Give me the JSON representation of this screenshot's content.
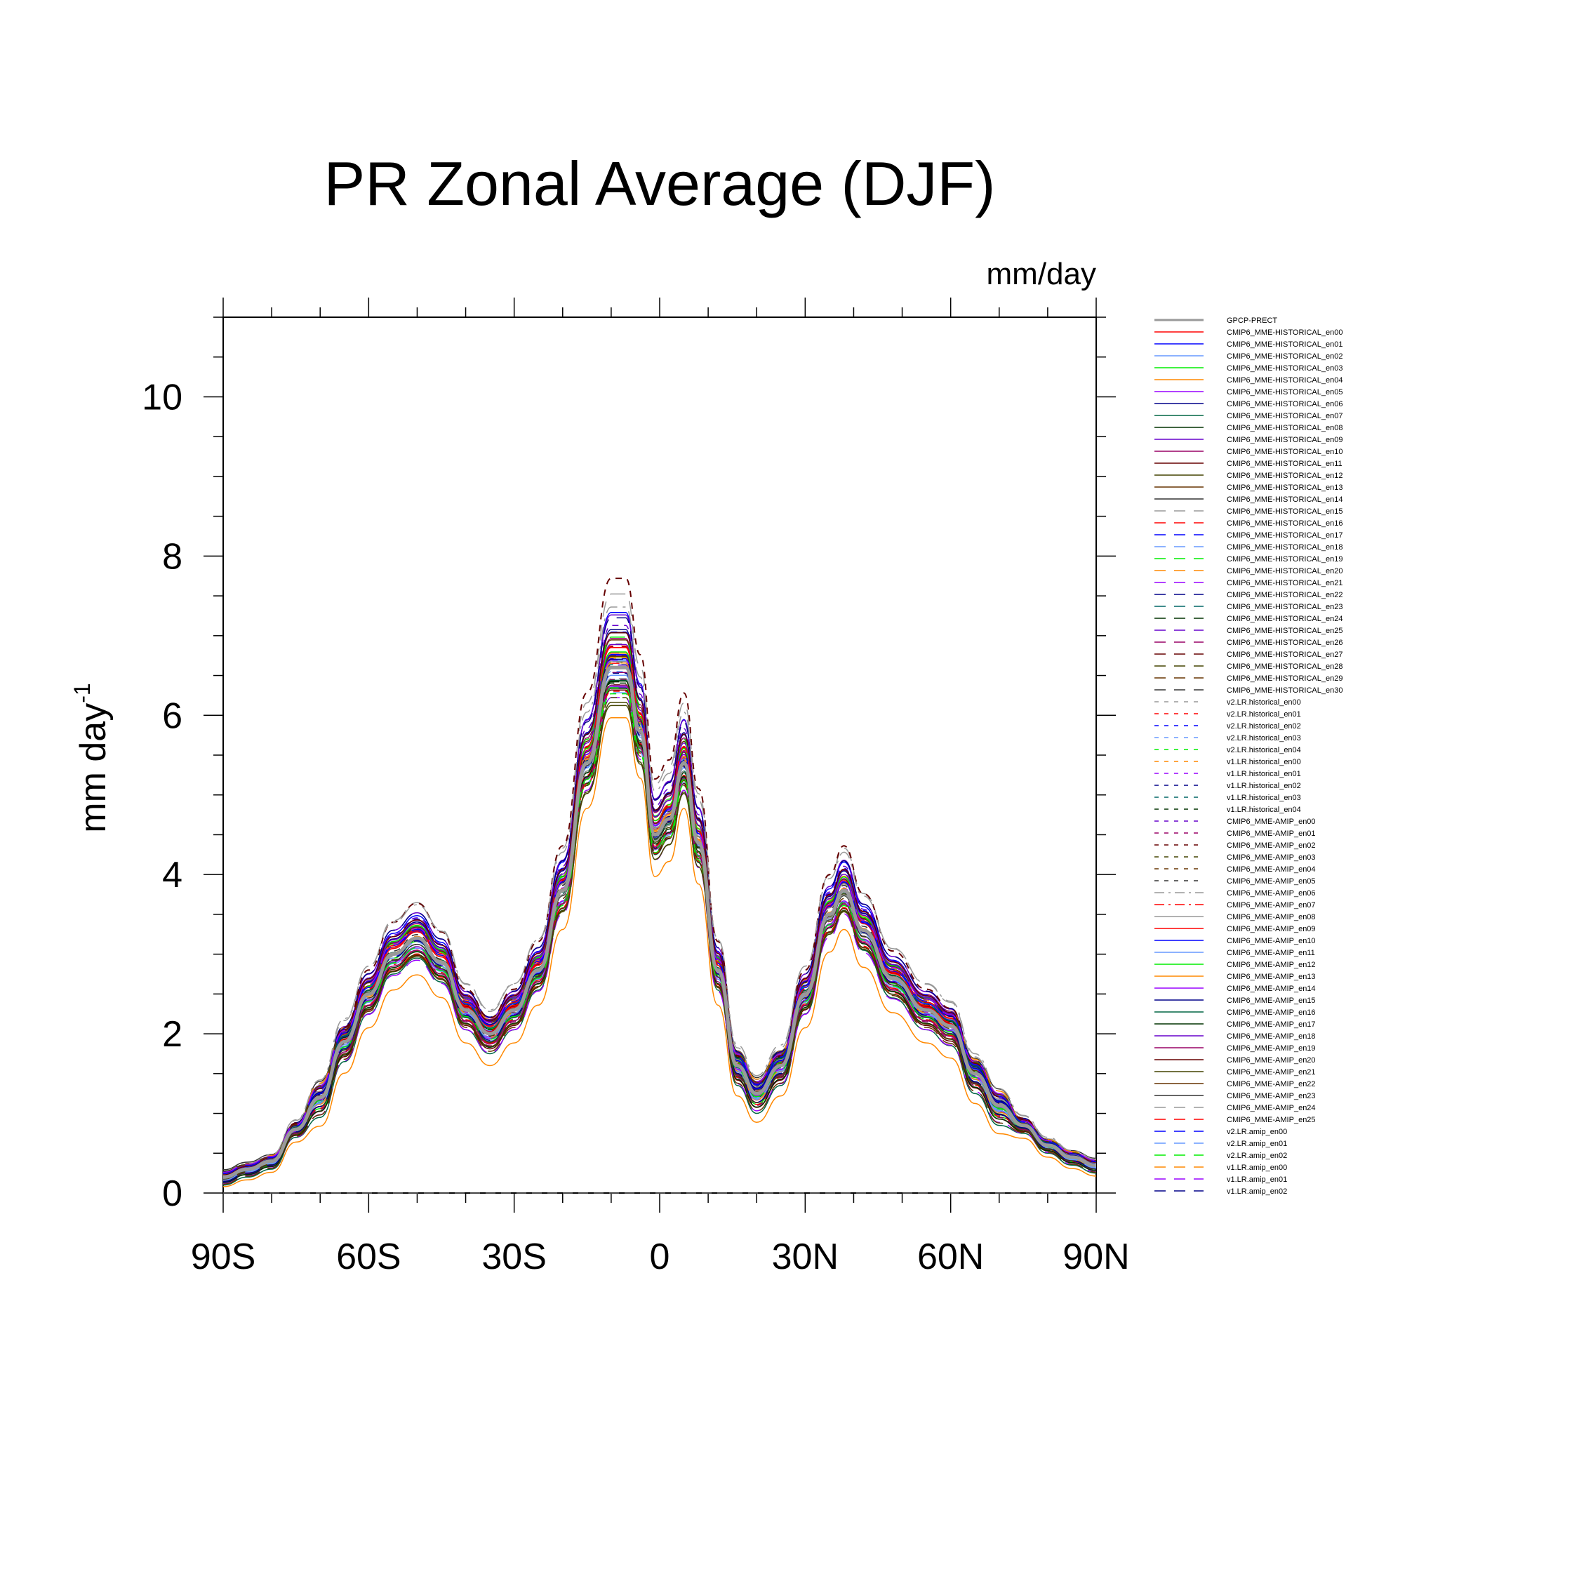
{
  "chart_data": {
    "type": "line",
    "title": "PR Zonal Average (DJF)",
    "units_label": "mm/day",
    "ylabel": "mm day",
    "ylabel_superscript": "-1",
    "xlabel": "",
    "xlim": [
      -90,
      90
    ],
    "ylim": [
      0,
      11
    ],
    "x_ticks": [
      {
        "value": -90,
        "label": "90S"
      },
      {
        "value": -60,
        "label": "60S"
      },
      {
        "value": -30,
        "label": "30S"
      },
      {
        "value": 0,
        "label": "0"
      },
      {
        "value": 30,
        "label": "30N"
      },
      {
        "value": 60,
        "label": "60N"
      },
      {
        "value": 90,
        "label": "90N"
      }
    ],
    "y_ticks": [
      {
        "value": 0,
        "label": "0"
      },
      {
        "value": 2,
        "label": "2"
      },
      {
        "value": 4,
        "label": "4"
      },
      {
        "value": 6,
        "label": "6"
      },
      {
        "value": 8,
        "label": "8"
      },
      {
        "value": 10,
        "label": "10"
      }
    ],
    "grid": false,
    "legend_position": "right",
    "base_profile": {
      "x": [
        -90,
        -85,
        -80,
        -75,
        -70,
        -65,
        -60,
        -55,
        -50,
        -45,
        -40,
        -35,
        -30,
        -25,
        -20,
        -15,
        -10,
        -7,
        -4,
        -1,
        2,
        5,
        8,
        12,
        16,
        20,
        25,
        30,
        35,
        38,
        42,
        48,
        55,
        60,
        65,
        70,
        75,
        80,
        85,
        90
      ],
      "values": [
        0.2,
        0.3,
        0.4,
        0.8,
        1.2,
        1.9,
        2.5,
        3.0,
        3.2,
        2.9,
        2.3,
        2.0,
        2.3,
        2.8,
        3.8,
        5.4,
        6.6,
        6.6,
        5.8,
        4.5,
        4.7,
        5.4,
        4.4,
        2.8,
        1.6,
        1.25,
        1.6,
        2.5,
        3.5,
        3.8,
        3.3,
        2.7,
        2.3,
        2.1,
        1.5,
        1.1,
        0.85,
        0.6,
        0.45,
        0.35
      ]
    },
    "series": [
      {
        "name": "GPCP-PRECT",
        "color": "#999999",
        "dash": "solid",
        "width": 5,
        "offset": 0.0,
        "scale": 1.0
      },
      {
        "name": "CMIP6_MME-HISTORICAL_en00",
        "color": "#ff0000",
        "dash": "solid",
        "width": 1.5,
        "offset": 0.05,
        "scale": 1.02
      },
      {
        "name": "CMIP6_MME-HISTORICAL_en01",
        "color": "#0000ff",
        "dash": "solid",
        "width": 1.5,
        "offset": -0.1,
        "scale": 1.12
      },
      {
        "name": "CMIP6_MME-HISTORICAL_en02",
        "color": "#6699ff",
        "dash": "solid",
        "width": 1.5,
        "offset": 0.1,
        "scale": 0.97
      },
      {
        "name": "CMIP6_MME-HISTORICAL_en03",
        "color": "#00ee00",
        "dash": "solid",
        "width": 1.5,
        "offset": -0.2,
        "scale": 1.05
      },
      {
        "name": "CMIP6_MME-HISTORICAL_en04",
        "color": "#ff8800",
        "dash": "solid",
        "width": 1.5,
        "offset": -0.3,
        "scale": 0.95
      },
      {
        "name": "CMIP6_MME-HISTORICAL_en05",
        "color": "#9900ff",
        "dash": "solid",
        "width": 1.5,
        "offset": 0.15,
        "scale": 1.0
      },
      {
        "name": "CMIP6_MME-HISTORICAL_en06",
        "color": "#000088",
        "dash": "solid",
        "width": 1.5,
        "offset": -0.05,
        "scale": 1.08
      },
      {
        "name": "CMIP6_MME-HISTORICAL_en07",
        "color": "#006644",
        "dash": "solid",
        "width": 1.5,
        "offset": -0.25,
        "scale": 1.0
      },
      {
        "name": "CMIP6_MME-HISTORICAL_en08",
        "color": "#003300",
        "dash": "solid",
        "width": 1.5,
        "offset": 0.2,
        "scale": 0.93
      },
      {
        "name": "CMIP6_MME-HISTORICAL_en09",
        "color": "#6600cc",
        "dash": "solid",
        "width": 1.5,
        "offset": 0.0,
        "scale": 1.1
      },
      {
        "name": "CMIP6_MME-HISTORICAL_en10",
        "color": "#990066",
        "dash": "solid",
        "width": 1.5,
        "offset": 0.1,
        "scale": 1.04
      },
      {
        "name": "CMIP6_MME-HISTORICAL_en11",
        "color": "#660000",
        "dash": "solid",
        "width": 1.5,
        "offset": -0.15,
        "scale": 0.98
      },
      {
        "name": "CMIP6_MME-HISTORICAL_en12",
        "color": "#444400",
        "dash": "solid",
        "width": 1.5,
        "offset": 0.05,
        "scale": 0.92
      },
      {
        "name": "CMIP6_MME-HISTORICAL_en13",
        "color": "#663300",
        "dash": "solid",
        "width": 1.5,
        "offset": -0.05,
        "scale": 1.06
      },
      {
        "name": "CMIP6_MME-HISTORICAL_en14",
        "color": "#333333",
        "dash": "solid",
        "width": 1.5,
        "offset": 0.25,
        "scale": 0.96
      },
      {
        "name": "CMIP6_MME-HISTORICAL_en15",
        "color": "#999999",
        "dash": "longdash",
        "width": 1.5,
        "offset": 0.0,
        "scale": 1.14
      },
      {
        "name": "CMIP6_MME-HISTORICAL_en16",
        "color": "#ff0000",
        "dash": "longdash",
        "width": 1.5,
        "offset": 0.12,
        "scale": 0.99
      },
      {
        "name": "CMIP6_MME-HISTORICAL_en17",
        "color": "#0000ff",
        "dash": "longdash",
        "width": 1.5,
        "offset": -0.12,
        "scale": 1.03
      },
      {
        "name": "CMIP6_MME-HISTORICAL_en18",
        "color": "#6699ff",
        "dash": "longdash",
        "width": 1.5,
        "offset": 0.08,
        "scale": 0.94
      },
      {
        "name": "CMIP6_MME-HISTORICAL_en19",
        "color": "#00ee00",
        "dash": "longdash",
        "width": 1.5,
        "offset": -0.08,
        "scale": 1.07
      },
      {
        "name": "CMIP6_MME-HISTORICAL_en20",
        "color": "#ff8800",
        "dash": "longdash",
        "width": 1.5,
        "offset": 0.18,
        "scale": 1.0
      },
      {
        "name": "CMIP6_MME-HISTORICAL_en21",
        "color": "#9900ff",
        "dash": "longdash",
        "width": 1.5,
        "offset": -0.18,
        "scale": 0.97
      },
      {
        "name": "CMIP6_MME-HISTORICAL_en22",
        "color": "#000088",
        "dash": "longdash",
        "width": 1.5,
        "offset": 0.03,
        "scale": 1.09
      },
      {
        "name": "CMIP6_MME-HISTORICAL_en23",
        "color": "#006666",
        "dash": "longdash",
        "width": 1.5,
        "offset": -0.03,
        "scale": 1.01
      },
      {
        "name": "CMIP6_MME-HISTORICAL_en24",
        "color": "#003300",
        "dash": "longdash",
        "width": 1.5,
        "offset": 0.15,
        "scale": 0.95
      },
      {
        "name": "CMIP6_MME-HISTORICAL_en25",
        "color": "#6600cc",
        "dash": "longdash",
        "width": 1.5,
        "offset": -0.1,
        "scale": 1.02
      },
      {
        "name": "CMIP6_MME-HISTORICAL_en26",
        "color": "#990066",
        "dash": "longdash",
        "width": 1.5,
        "offset": 0.07,
        "scale": 0.98
      },
      {
        "name": "CMIP6_MME-HISTORICAL_en27",
        "color": "#660000",
        "dash": "longdash",
        "width": 1.5,
        "offset": -0.07,
        "scale": 1.05
      },
      {
        "name": "CMIP6_MME-HISTORICAL_en28",
        "color": "#444400",
        "dash": "longdash",
        "width": 1.5,
        "offset": 0.22,
        "scale": 0.93
      },
      {
        "name": "CMIP6_MME-HISTORICAL_en29",
        "color": "#663300",
        "dash": "longdash",
        "width": 1.5,
        "offset": -0.22,
        "scale": 1.0
      },
      {
        "name": "CMIP6_MME-HISTORICAL_en30",
        "color": "#333333",
        "dash": "longdash",
        "width": 1.5,
        "offset": 0.0,
        "scale": 1.0
      },
      {
        "name": "v2.LR.historical_en00",
        "color": "#999999",
        "dash": "shortdash",
        "width": 1.5,
        "offset": 0.1,
        "scale": 1.03
      },
      {
        "name": "v2.LR.historical_en01",
        "color": "#ff0000",
        "dash": "shortdash",
        "width": 1.5,
        "offset": -0.1,
        "scale": 0.97
      },
      {
        "name": "v2.LR.historical_en02",
        "color": "#0000ff",
        "dash": "shortdash",
        "width": 1.5,
        "offset": 0.05,
        "scale": 1.06
      },
      {
        "name": "v2.LR.historical_en03",
        "color": "#6699ff",
        "dash": "shortdash",
        "width": 1.5,
        "offset": -0.05,
        "scale": 1.0
      },
      {
        "name": "v2.LR.historical_en04",
        "color": "#00ee00",
        "dash": "shortdash",
        "width": 1.5,
        "offset": 0.0,
        "scale": 0.95
      },
      {
        "name": "v1.LR.historical_en00",
        "color": "#ff8800",
        "dash": "shortdash",
        "width": 1.5,
        "offset": 0.12,
        "scale": 1.0
      },
      {
        "name": "v1.LR.historical_en01",
        "color": "#9900ff",
        "dash": "shortdash",
        "width": 1.5,
        "offset": -0.12,
        "scale": 1.04
      },
      {
        "name": "v1.LR.historical_en02",
        "color": "#000088",
        "dash": "shortdash",
        "width": 1.5,
        "offset": 0.06,
        "scale": 0.98
      },
      {
        "name": "v1.LR.historical_en03",
        "color": "#006666",
        "dash": "shortdash",
        "width": 1.5,
        "offset": -0.06,
        "scale": 1.02
      },
      {
        "name": "v1.LR.historical_en04",
        "color": "#003300",
        "dash": "shortdash",
        "width": 1.5,
        "offset": 0.2,
        "scale": 0.94
      },
      {
        "name": "CMIP6_MME-AMIP_en00",
        "color": "#6600cc",
        "dash": "shortdash",
        "width": 1.5,
        "offset": 0.0,
        "scale": 1.08
      },
      {
        "name": "CMIP6_MME-AMIP_en01",
        "color": "#990066",
        "dash": "shortdash",
        "width": 1.5,
        "offset": -0.15,
        "scale": 1.0
      },
      {
        "name": "CMIP6_MME-AMIP_en02",
        "color": "#660000",
        "dash": "shortdash",
        "width": 2,
        "offset": -0.2,
        "scale": 1.2
      },
      {
        "name": "CMIP6_MME-AMIP_en03",
        "color": "#444400",
        "dash": "shortdash",
        "width": 1.5,
        "offset": 0.15,
        "scale": 0.92
      },
      {
        "name": "CMIP6_MME-AMIP_en04",
        "color": "#663300",
        "dash": "shortdash",
        "width": 1.5,
        "offset": 0.05,
        "scale": 0.96
      },
      {
        "name": "CMIP6_MME-AMIP_en05",
        "color": "#333333",
        "dash": "shortdash",
        "width": 1.5,
        "offset": -0.05,
        "scale": 1.03
      },
      {
        "name": "CMIP6_MME-AMIP_en06",
        "color": "#999999",
        "dash": "dashdot",
        "width": 1.5,
        "offset": 0.1,
        "scale": 1.1
      },
      {
        "name": "CMIP6_MME-AMIP_en07",
        "color": "#ff0000",
        "dash": "dashdot",
        "width": 1.5,
        "offset": -0.1,
        "scale": 0.99
      },
      {
        "name": "CMIP6_MME-AMIP_en08",
        "color": "#999999",
        "dash": "solid",
        "width": 1.5,
        "offset": 0.08,
        "scale": 1.0
      },
      {
        "name": "CMIP6_MME-AMIP_en09",
        "color": "#ff0000",
        "dash": "solid",
        "width": 1.5,
        "offset": -0.08,
        "scale": 1.05
      },
      {
        "name": "CMIP6_MME-AMIP_en10",
        "color": "#0000ff",
        "dash": "solid",
        "width": 1.5,
        "offset": 0.03,
        "scale": 1.02
      },
      {
        "name": "CMIP6_MME-AMIP_en11",
        "color": "#6699ff",
        "dash": "solid",
        "width": 1.5,
        "offset": -0.03,
        "scale": 0.97
      },
      {
        "name": "CMIP6_MME-AMIP_en12",
        "color": "#00ee00",
        "dash": "solid",
        "width": 1.5,
        "offset": 0.13,
        "scale": 1.01
      },
      {
        "name": "CMIP6_MME-AMIP_en13",
        "color": "#ff8800",
        "dash": "solid",
        "width": 1.5,
        "offset": -0.13,
        "scale": 1.04
      },
      {
        "name": "CMIP6_MME-AMIP_en14",
        "color": "#9900ff",
        "dash": "solid",
        "width": 1.5,
        "offset": 0.02,
        "scale": 0.96
      },
      {
        "name": "CMIP6_MME-AMIP_en15",
        "color": "#000088",
        "dash": "solid",
        "width": 1.5,
        "offset": -0.02,
        "scale": 1.07
      },
      {
        "name": "CMIP6_MME-AMIP_en16",
        "color": "#006644",
        "dash": "solid",
        "width": 1.5,
        "offset": 0.17,
        "scale": 0.95
      },
      {
        "name": "CMIP6_MME-AMIP_en17",
        "color": "#003300",
        "dash": "solid",
        "width": 1.5,
        "offset": -0.17,
        "scale": 1.0
      },
      {
        "name": "CMIP6_MME-AMIP_en18",
        "color": "#6600cc",
        "dash": "solid",
        "width": 1.5,
        "offset": 0.09,
        "scale": 1.03
      },
      {
        "name": "CMIP6_MME-AMIP_en19",
        "color": "#990066",
        "dash": "solid",
        "width": 1.5,
        "offset": -0.09,
        "scale": 0.98
      },
      {
        "name": "CMIP6_MME-AMIP_en20",
        "color": "#660000",
        "dash": "solid",
        "width": 1.5,
        "offset": 0.04,
        "scale": 1.06
      },
      {
        "name": "CMIP6_MME-AMIP_en21",
        "color": "#444400",
        "dash": "solid",
        "width": 1.5,
        "offset": -0.04,
        "scale": 0.94
      },
      {
        "name": "CMIP6_MME-AMIP_en22",
        "color": "#663300",
        "dash": "solid",
        "width": 1.5,
        "offset": 0.14,
        "scale": 1.0
      },
      {
        "name": "CMIP6_MME-AMIP_en23",
        "color": "#333333",
        "dash": "solid",
        "width": 1.5,
        "offset": -0.14,
        "scale": 1.02
      },
      {
        "name": "CMIP6_MME-AMIP_en24",
        "color": "#999999",
        "dash": "longdash",
        "width": 1.5,
        "offset": 0.06,
        "scale": 0.97
      },
      {
        "name": "CMIP6_MME-AMIP_en25",
        "color": "#ff0000",
        "dash": "longdash",
        "width": 1.5,
        "offset": -0.06,
        "scale": 1.05
      },
      {
        "name": "v2.LR.amip_en00",
        "color": "#0000ff",
        "dash": "longdash",
        "width": 1.5,
        "offset": 0.11,
        "scale": 1.0
      },
      {
        "name": "v2.LR.amip_en01",
        "color": "#6699ff",
        "dash": "longdash",
        "width": 1.5,
        "offset": -0.11,
        "scale": 1.03
      },
      {
        "name": "v2.LR.amip_en02",
        "color": "#00ee00",
        "dash": "longdash",
        "width": 1.5,
        "offset": 0.01,
        "scale": 0.96
      },
      {
        "name": "v1.LR.amip_en00",
        "color": "#ff8800",
        "dash": "longdash",
        "width": 1.5,
        "offset": -0.01,
        "scale": 1.01
      },
      {
        "name": "v1.LR.amip_en01",
        "color": "#9900ff",
        "dash": "longdash",
        "width": 1.5,
        "offset": 0.16,
        "scale": 0.99
      },
      {
        "name": "v1.LR.amip_en02",
        "color": "#000088",
        "dash": "longdash",
        "width": 1.5,
        "offset": -0.16,
        "scale": 1.04
      }
    ]
  }
}
